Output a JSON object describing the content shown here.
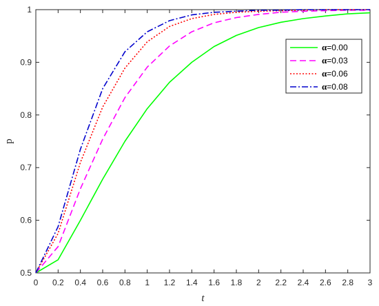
{
  "chart_data": {
    "type": "line",
    "xlabel": "t",
    "ylabel": "p",
    "xlim": [
      0,
      3
    ],
    "ylim": [
      0.5,
      1
    ],
    "xticks": [
      "0",
      "0.2",
      "0.4",
      "0.6",
      "0.8",
      "1",
      "1.2",
      "1.4",
      "1.6",
      "1.8",
      "2",
      "2.2",
      "2.4",
      "2.6",
      "2.8",
      "3"
    ],
    "yticks": [
      "0.5",
      "0.6",
      "0.7",
      "0.8",
      "0.9",
      "1"
    ],
    "grid": false,
    "legend_position": "top-right",
    "x": [
      0,
      0.2,
      0.4,
      0.6,
      0.8,
      1.0,
      1.2,
      1.4,
      1.6,
      1.8,
      2.0,
      2.2,
      2.4,
      2.6,
      2.8,
      3.0
    ],
    "series": [
      {
        "name": "α=0.00",
        "symbol": "α",
        "value_label": "=0.00",
        "color": "#00ff00",
        "dash": "solid",
        "values": [
          0.5,
          0.525,
          0.6,
          0.678,
          0.75,
          0.812,
          0.862,
          0.9,
          0.93,
          0.951,
          0.966,
          0.976,
          0.983,
          0.988,
          0.992,
          0.994
        ]
      },
      {
        "name": "α=0.03",
        "symbol": "α",
        "value_label": "=0.03",
        "color": "#ff00ff",
        "dash": "dashed",
        "values": [
          0.5,
          0.55,
          0.66,
          0.754,
          0.833,
          0.891,
          0.931,
          0.958,
          0.975,
          0.985,
          0.991,
          0.995,
          0.997,
          0.998,
          0.999,
          0.999
        ]
      },
      {
        "name": "α=0.06",
        "symbol": "α",
        "value_label": "=0.06",
        "color": "#ff0000",
        "dash": "dotted",
        "values": [
          0.5,
          0.575,
          0.71,
          0.815,
          0.889,
          0.939,
          0.968,
          0.983,
          0.991,
          0.995,
          0.997,
          0.998,
          0.999,
          1.0,
          1.0,
          1.0
        ]
      },
      {
        "name": "α=0.08",
        "symbol": "α",
        "value_label": "=0.08",
        "color": "#0000cc",
        "dash": "dashdot",
        "values": [
          0.5,
          0.588,
          0.735,
          0.85,
          0.92,
          0.958,
          0.979,
          0.99,
          0.995,
          0.997,
          0.999,
          0.999,
          1.0,
          1.0,
          1.0,
          1.0
        ]
      }
    ]
  }
}
